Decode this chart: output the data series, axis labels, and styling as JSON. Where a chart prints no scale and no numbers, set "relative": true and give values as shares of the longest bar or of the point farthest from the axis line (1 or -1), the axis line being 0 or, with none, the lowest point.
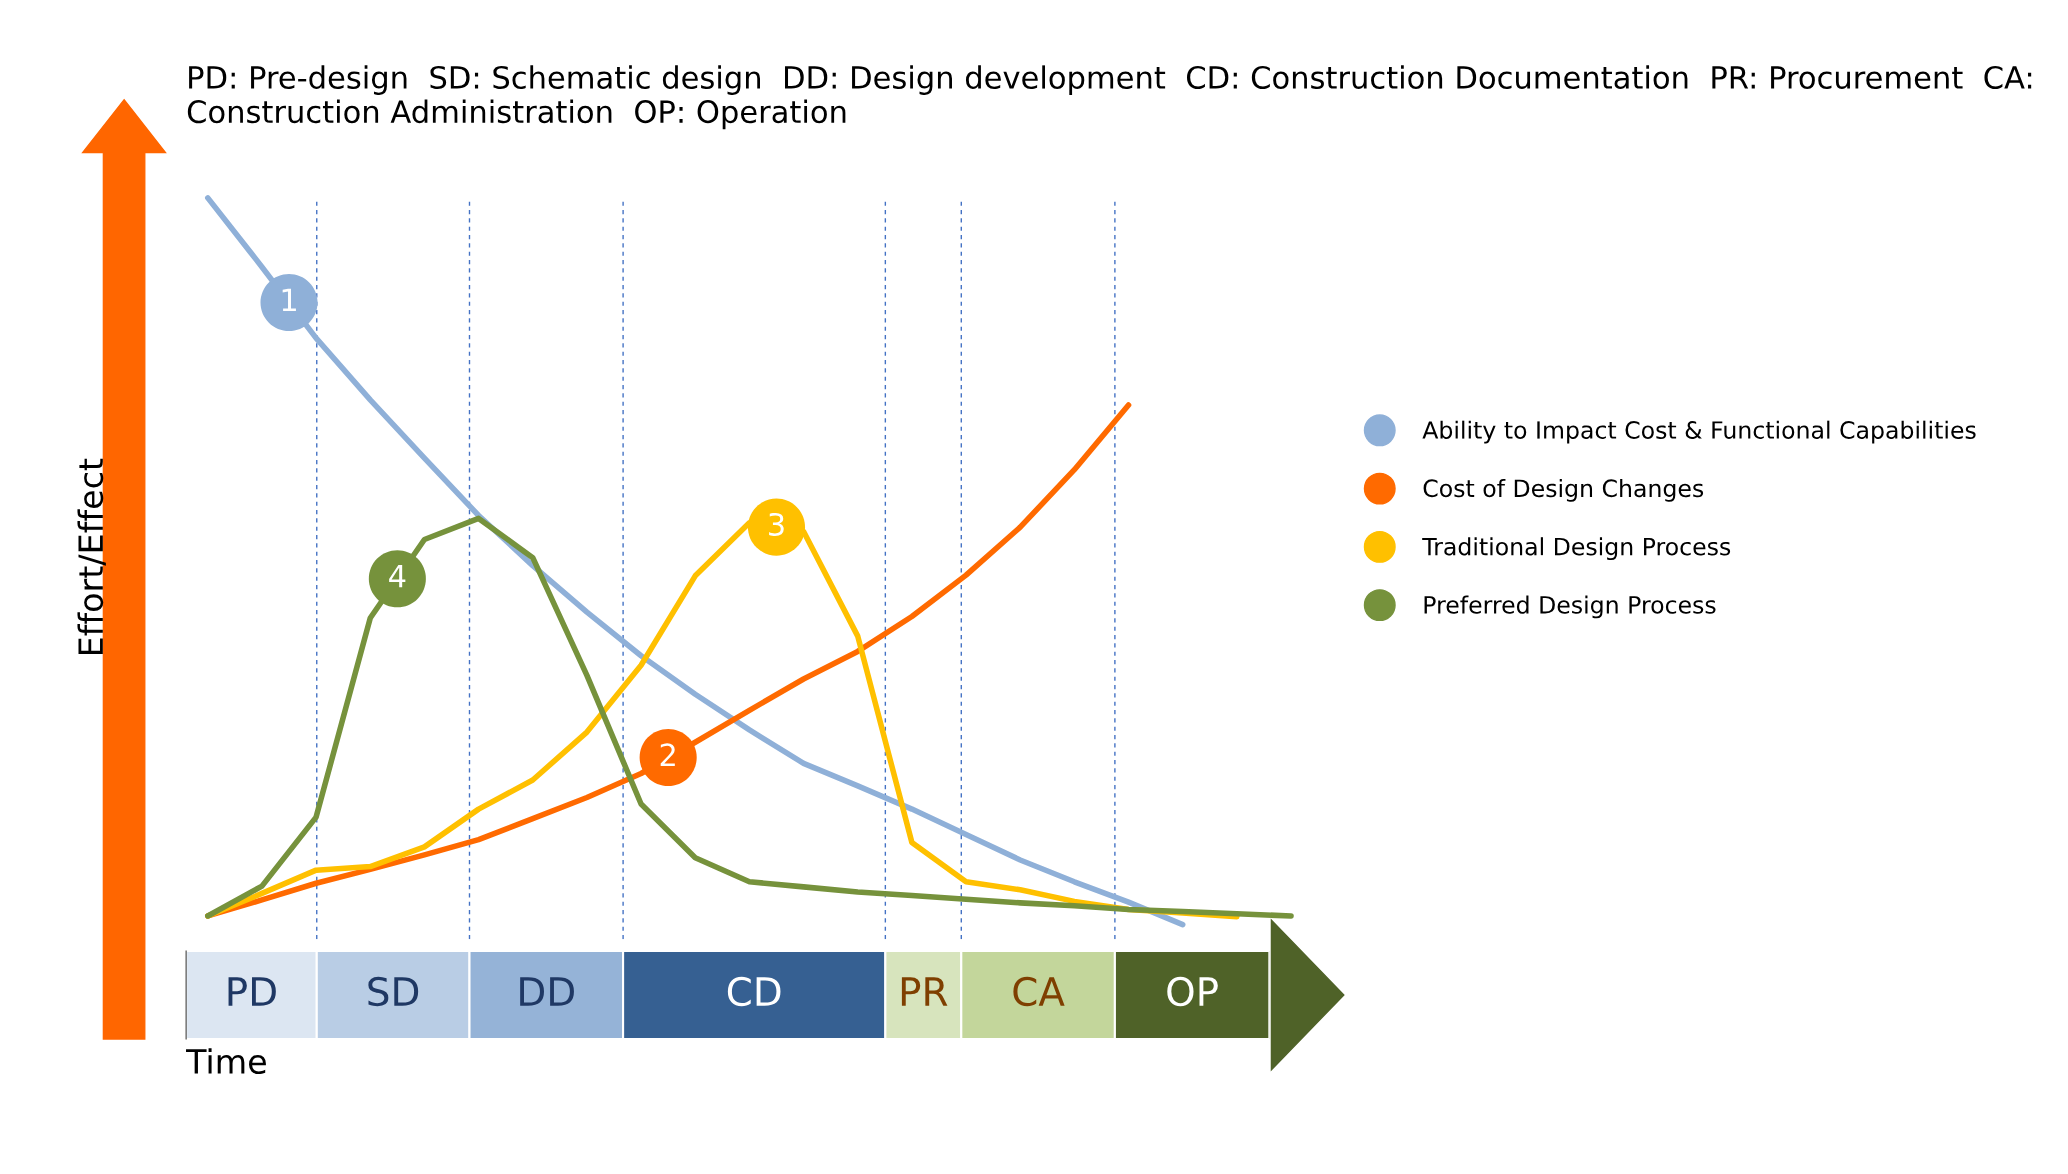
{
  "chart_data": [
    {
      "type": "line",
      "relative": true,
      "title": "PD: Pre-design  SD: Schematic design  DD: Design development  CD: Construction Documentation  PR: Procurement  CA: Construction Administration  OP: Operation",
      "xlabel": "Time",
      "ylabel": "Effort/Effect",
      "legend": "right",
      "line_style": "solid",
      "categories": [
        null,
        null,
        null,
        null,
        null,
        null,
        null,
        null,
        null,
        null,
        null,
        null,
        null,
        null,
        null,
        null,
        null,
        null,
        null,
        null,
        null
      ],
      "series": [
        {
          "name": "Ability to Impact Cost & Functional Capabilities",
          "color": "#8fb0d8",
          "values": [
            1.0,
            0.905,
            0.807,
            0.722,
            0.642,
            0.563,
            0.494,
            0.43,
            0.37,
            0.317,
            0.268,
            0.222,
            0.191,
            0.159,
            0.124,
            0.089,
            0.059,
            0.031,
            0.0,
            null,
            null
          ]
        },
        {
          "name": "Cost of Design Changes",
          "color": "#ff6a00",
          "values": [
            0.012,
            0.034,
            0.057,
            0.076,
            0.096,
            0.117,
            0.146,
            0.175,
            0.208,
            0.251,
            0.295,
            0.338,
            0.376,
            0.424,
            0.481,
            0.547,
            0.626,
            0.715,
            null,
            null,
            null
          ]
        },
        {
          "name": "Traditional Design Process",
          "color": "#ffc000",
          "values": [
            0.012,
            0.043,
            0.075,
            0.08,
            0.107,
            0.159,
            0.199,
            0.265,
            0.357,
            0.48,
            0.553,
            0.541,
            0.397,
            0.113,
            0.059,
            0.048,
            0.032,
            0.021,
            0.016,
            0.011,
            null
          ]
        },
        {
          "name": "Preferred Design Process",
          "color": "#76923c",
          "values": [
            0.012,
            0.053,
            0.148,
            0.422,
            0.53,
            0.559,
            0.505,
            0.343,
            0.166,
            0.092,
            0.059,
            0.052,
            0.045,
            0.04,
            0.035,
            0.03,
            0.026,
            0.021,
            0.018,
            0.015,
            0.012
          ]
        }
      ],
      "annotations": [
        {
          "text": "1",
          "y": 0.856
        },
        {
          "text": "2",
          "y": 0.23
        },
        {
          "text": "3",
          "y": 0.547
        },
        {
          "text": "4",
          "y": 0.476
        }
      ]
    },
    {
      "type": "bar",
      "orientation": "horizontal",
      "stacked": true,
      "relative": true,
      "categories": [
        null
      ],
      "series": [
        {
          "name": "PD",
          "color": "#dce6f2",
          "values": [
            0.1206
          ]
        },
        {
          "name": "SD",
          "color": "#b9cde5",
          "values": [
            0.141
          ]
        },
        {
          "name": "DD",
          "color": "#95b3d7",
          "values": [
            0.1418
          ]
        },
        {
          "name": "CD",
          "color": "#366092",
          "values": [
            0.2421
          ]
        },
        {
          "name": "PR",
          "color": "#d7e4bd",
          "values": [
            0.0701
          ]
        },
        {
          "name": "CA",
          "color": "#c3d69b",
          "values": [
            0.1418
          ]
        },
        {
          "name": "OP",
          "color": "#4f6228",
          "values": [
            0.1426
          ]
        }
      ]
    }
  ]
}
